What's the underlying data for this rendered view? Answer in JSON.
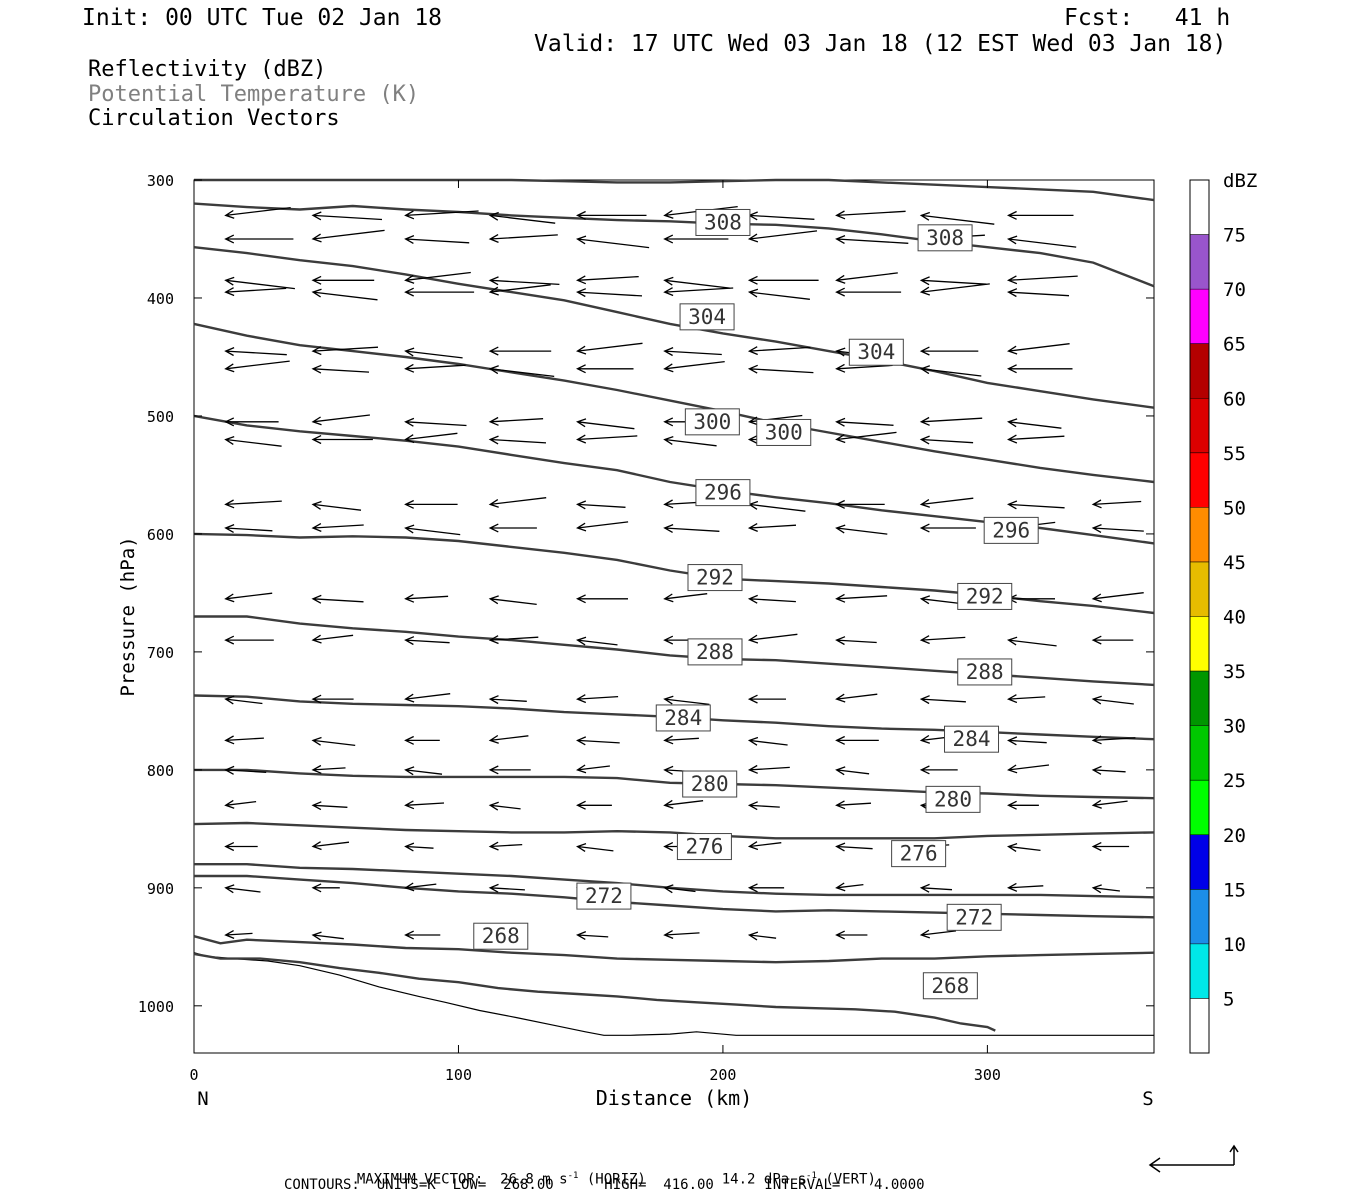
{
  "header": {
    "init": "Init: 00 UTC Tue 02 Jan 18",
    "fcst": "Fcst:   41 h",
    "valid": "Valid: 17 UTC Wed 03 Jan 18 (12 EST Wed 03 Jan 18)"
  },
  "legend_lines": {
    "reflectivity": "Reflectivity (dBZ)",
    "theta": "Potential Temperature (K)",
    "vectors": "Circulation Vectors"
  },
  "colors": {
    "theta_line": "#3c3c3c",
    "text_gray": "#808080"
  },
  "footer": {
    "max_vector_prefix": "MAXIMUM VECTOR:  26.8 m s",
    "horiz": "(HORIZ)",
    "vert_prefix": "14.2 dPa s",
    "vert": "(VERT)",
    "exp": "-1",
    "contours": "CONTOURS:  UNITS=K  LOW=  268.00      HIGH=  416.00      INTERVAL=    4.0000"
  },
  "chart_data": {
    "type": "line",
    "title": "Potential Temperature (K)",
    "xlabel": "Distance (km)",
    "ylabel": "Pressure (hPa)",
    "xlim": [
      0,
      363
    ],
    "ylim": [
      300,
      1040
    ],
    "y_log": false,
    "x_ticks": [
      0,
      100,
      200,
      300
    ],
    "y_ticks": [
      300,
      400,
      500,
      600,
      700,
      800,
      900,
      1000
    ],
    "x_end_labels": {
      "left": "N",
      "right": "S"
    },
    "terrain_pressure_hpa": [
      955,
      958,
      960,
      962,
      966,
      974,
      984,
      992,
      997,
      1004,
      1010,
      1016,
      1022,
      1025,
      1025,
      1024,
      1022,
      1025,
      1025,
      1025,
      1025,
      1025,
      1025,
      1025,
      1025
    ],
    "terrain_x_km": [
      0,
      5,
      15,
      28,
      40,
      55,
      70,
      85,
      95,
      108,
      122,
      135,
      148,
      155,
      165,
      180,
      190,
      205,
      230,
      260,
      290,
      310,
      330,
      350,
      363
    ],
    "isentropes": [
      {
        "theta": 268,
        "x": [
          0,
          10,
          25,
          40,
          55,
          70,
          85,
          100,
          115,
          130,
          145,
          160,
          175,
          190,
          205,
          220,
          235,
          250,
          265,
          280,
          290,
          300,
          303
        ],
        "p": [
          956,
          960,
          960,
          963,
          968,
          972,
          977,
          980,
          985,
          988,
          990,
          992,
          995,
          997,
          999,
          1001,
          1002,
          1003,
          1005,
          1010,
          1015,
          1018,
          1021
        ]
      },
      {
        "theta": 272,
        "x": [
          0,
          10,
          20,
          40,
          60,
          80,
          100,
          120,
          140,
          160,
          180,
          200,
          220,
          240,
          260,
          280,
          300,
          320,
          340,
          363
        ],
        "p": [
          941,
          947,
          944,
          946,
          948,
          951,
          952,
          955,
          957,
          960,
          961,
          962,
          963,
          962,
          960,
          960,
          958,
          957,
          956,
          955
        ]
      },
      {
        "theta": 276,
        "x": [
          0,
          20,
          40,
          60,
          80,
          100,
          120,
          140,
          160,
          180,
          200,
          220,
          240,
          260,
          280,
          300,
          320,
          340,
          363
        ],
        "p": [
          890,
          890,
          893,
          896,
          900,
          903,
          905,
          908,
          912,
          915,
          918,
          920,
          919,
          920,
          921,
          922,
          923,
          924,
          925
        ]
      },
      {
        "theta": 280,
        "x": [
          0,
          20,
          40,
          60,
          80,
          100,
          120,
          140,
          160,
          180,
          200,
          220,
          240,
          260,
          280,
          300,
          320,
          340,
          363
        ],
        "p": [
          880,
          880,
          883,
          884,
          886,
          888,
          890,
          893,
          896,
          900,
          903,
          905,
          906,
          906,
          906,
          906,
          906,
          907,
          908
        ]
      },
      {
        "theta": 284,
        "x": [
          0,
          20,
          40,
          60,
          80,
          100,
          120,
          140,
          160,
          180,
          200,
          220,
          240,
          260,
          280,
          300,
          320,
          340,
          363
        ],
        "p": [
          846,
          845,
          847,
          849,
          851,
          852,
          853,
          853,
          852,
          853,
          856,
          858,
          858,
          858,
          858,
          856,
          855,
          854,
          853
        ]
      },
      {
        "theta": 288,
        "x": [
          0,
          20,
          40,
          60,
          80,
          100,
          120,
          140,
          160,
          180,
          200,
          220,
          240,
          260,
          280,
          300,
          320,
          340,
          363
        ],
        "p": [
          800,
          800,
          803,
          805,
          806,
          806,
          806,
          806,
          807,
          811,
          812,
          813,
          815,
          817,
          819,
          820,
          822,
          823,
          824
        ]
      },
      {
        "theta": 292,
        "x": [
          0,
          20,
          40,
          60,
          80,
          100,
          120,
          140,
          160,
          180,
          200,
          220,
          240,
          260,
          280,
          300,
          320,
          340,
          363
        ],
        "p": [
          737,
          738,
          742,
          744,
          745,
          746,
          748,
          751,
          753,
          755,
          758,
          760,
          763,
          765,
          766,
          768,
          770,
          772,
          774
        ]
      },
      {
        "theta": 296,
        "x": [
          0,
          20,
          40,
          60,
          80,
          100,
          120,
          140,
          160,
          180,
          200,
          220,
          240,
          260,
          280,
          300,
          320,
          340,
          363
        ],
        "p": [
          670,
          670,
          676,
          680,
          683,
          687,
          690,
          694,
          698,
          703,
          706,
          707,
          710,
          713,
          716,
          719,
          722,
          725,
          728
        ]
      },
      {
        "theta": 300,
        "x": [
          0,
          20,
          40,
          60,
          80,
          100,
          120,
          140,
          160,
          180,
          200,
          220,
          240,
          260,
          280,
          300,
          320,
          340,
          363
        ],
        "p": [
          600,
          601,
          603,
          602,
          603,
          606,
          611,
          616,
          622,
          631,
          638,
          640,
          642,
          645,
          648,
          652,
          657,
          661,
          667
        ]
      },
      {
        "theta": 304,
        "x": [
          0,
          20,
          40,
          60,
          80,
          100,
          120,
          140,
          160,
          180,
          200,
          220,
          240,
          260,
          280,
          300,
          320,
          340,
          363
        ],
        "p": [
          500,
          508,
          513,
          517,
          521,
          526,
          533,
          540,
          546,
          556,
          563,
          569,
          574,
          580,
          585,
          590,
          595,
          601,
          608
        ]
      },
      {
        "theta": 308,
        "x": [
          0,
          20,
          40,
          60,
          80,
          100,
          120,
          140,
          160,
          180,
          200,
          220,
          240,
          260,
          280,
          300,
          320,
          340,
          363
        ],
        "p": [
          422,
          432,
          440,
          445,
          450,
          456,
          463,
          470,
          478,
          487,
          496,
          506,
          514,
          522,
          530,
          537,
          544,
          550,
          556
        ]
      },
      {
        "theta": 312,
        "x": [
          0,
          20,
          40,
          60,
          80,
          100,
          120,
          140,
          160,
          180,
          200,
          220,
          240,
          260,
          280,
          300,
          320,
          340,
          363
        ],
        "p": [
          357,
          362,
          368,
          373,
          380,
          388,
          395,
          402,
          412,
          422,
          430,
          437,
          445,
          453,
          462,
          472,
          479,
          486,
          493
        ]
      },
      {
        "theta": 316,
        "x": [
          0,
          20,
          40,
          60,
          80,
          100,
          120,
          140,
          160,
          180,
          200,
          220,
          240,
          260,
          280,
          300,
          320,
          340,
          363
        ],
        "p": [
          320,
          323,
          325,
          322,
          325,
          327,
          330,
          332,
          334,
          335,
          337,
          338,
          341,
          346,
          352,
          357,
          362,
          370,
          390
        ]
      },
      {
        "theta": 320,
        "x": [
          0,
          20,
          40,
          60,
          80,
          100,
          120,
          140,
          160,
          180,
          200,
          220,
          240,
          260,
          280,
          300,
          320,
          340,
          363
        ],
        "p": [
          300,
          300,
          300,
          300,
          300,
          300,
          300,
          301,
          302,
          302,
          301,
          300,
          300,
          302,
          304,
          306,
          308,
          310,
          317
        ]
      }
    ],
    "contour_labels": [
      {
        "text": "308",
        "x": 200,
        "p": 336
      },
      {
        "text": "308",
        "x": 284,
        "p": 349
      },
      {
        "text": "304",
        "x": 194,
        "p": 416
      },
      {
        "text": "304",
        "x": 258,
        "p": 446
      },
      {
        "text": "300",
        "x": 196,
        "p": 505
      },
      {
        "text": "300",
        "x": 223,
        "p": 514
      },
      {
        "text": "296",
        "x": 200,
        "p": 565
      },
      {
        "text": "296",
        "x": 309,
        "p": 597
      },
      {
        "text": "292",
        "x": 197,
        "p": 637
      },
      {
        "text": "292",
        "x": 299,
        "p": 653
      },
      {
        "text": "288",
        "x": 197,
        "p": 700
      },
      {
        "text": "288",
        "x": 299,
        "p": 717
      },
      {
        "text": "284",
        "x": 185,
        "p": 756
      },
      {
        "text": "284",
        "x": 294,
        "p": 774
      },
      {
        "text": "280",
        "x": 195,
        "p": 812
      },
      {
        "text": "280",
        "x": 287,
        "p": 825
      },
      {
        "text": "276",
        "x": 193,
        "p": 865
      },
      {
        "text": "276",
        "x": 274,
        "p": 871
      },
      {
        "text": "272",
        "x": 155,
        "p": 907
      },
      {
        "text": "272",
        "x": 295,
        "p": 925
      },
      {
        "text": "268",
        "x": 116,
        "p": 941
      },
      {
        "text": "268",
        "x": 286,
        "p": 983
      }
    ],
    "vector_rows_hpa": [
      330,
      350,
      385,
      395,
      445,
      460,
      505,
      520,
      575,
      595,
      655,
      690,
      740,
      775,
      800,
      830,
      865,
      900,
      940
    ],
    "dbz_colorbar": {
      "label": "dBZ",
      "levels": [
        5,
        10,
        15,
        20,
        25,
        30,
        35,
        40,
        45,
        50,
        55,
        60,
        65,
        70,
        75
      ],
      "colors": [
        "#00e8e8",
        "#1c8ee8",
        "#0000e8",
        "#00ff00",
        "#00c800",
        "#009600",
        "#ffff00",
        "#e6bc00",
        "#ff8c00",
        "#ff0000",
        "#dc0000",
        "#b40000",
        "#ff00ff",
        "#9955cc"
      ]
    }
  }
}
